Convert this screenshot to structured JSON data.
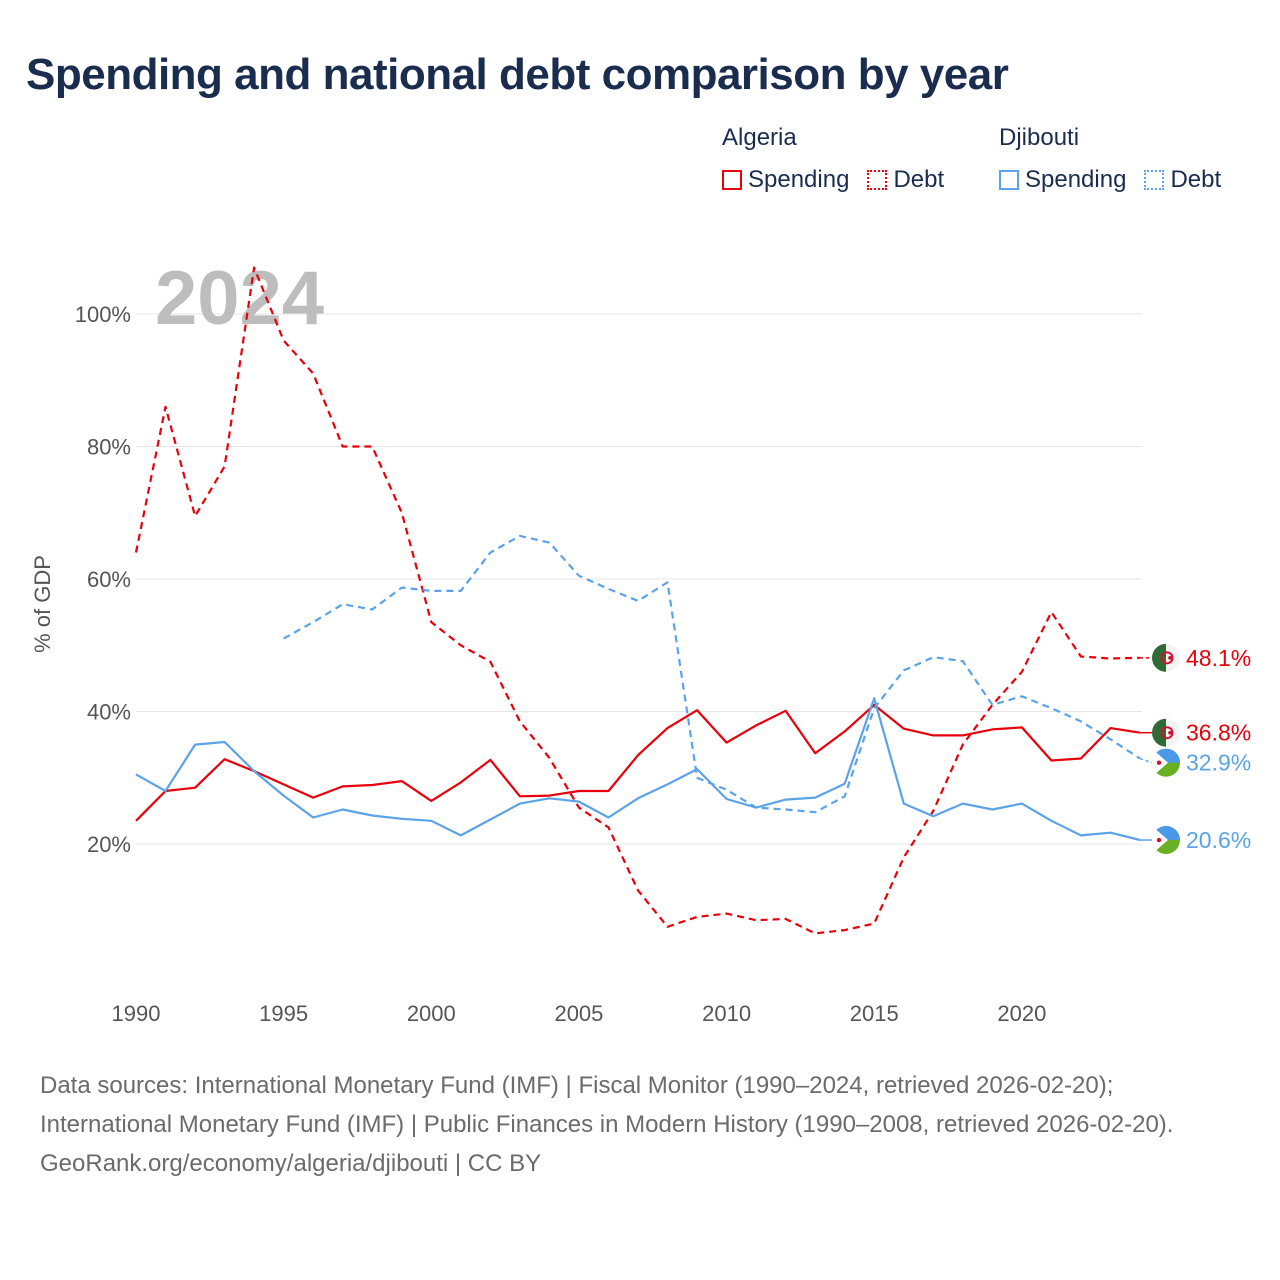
{
  "title": "Spending and national debt comparison by year",
  "legend": {
    "groups": [
      {
        "name": "Algeria",
        "color": "#e8000b",
        "items": [
          {
            "label": "Spending",
            "style": "solid"
          },
          {
            "label": "Debt",
            "style": "dotted"
          }
        ]
      },
      {
        "name": "Djibouti",
        "color": "#5ba3e6",
        "items": [
          {
            "label": "Spending",
            "style": "solid"
          },
          {
            "label": "Debt",
            "style": "dotted"
          }
        ]
      }
    ]
  },
  "footer": {
    "sources": "Data sources: International Monetary Fund (IMF) | Fiscal Monitor (1990–2024, retrieved 2026-02-20); International Monetary Fund (IMF) | Public Finances in Modern History (1990–2008, retrieved 2026-02-20).",
    "credit": "GeoRank.org/economy/algeria/djibouti | CC BY"
  },
  "chart_data": {
    "type": "line",
    "year_watermark": "2024",
    "ylabel": "% of GDP",
    "xlabel": "",
    "xlim": [
      1990,
      2024
    ],
    "ylim": [
      0,
      105
    ],
    "y_ticks": [
      20,
      40,
      60,
      80,
      100
    ],
    "y_tick_labels": [
      "20%",
      "40%",
      "60%",
      "80%",
      "100%"
    ],
    "x_ticks": [
      1990,
      1995,
      2000,
      2005,
      2010,
      2015,
      2020
    ],
    "x_tick_labels": [
      "1990",
      "1995",
      "2000",
      "2005",
      "2010",
      "2015",
      "2020"
    ],
    "grid": true,
    "series": [
      {
        "name": "Algeria Debt",
        "country": "Algeria",
        "metric": "Debt",
        "color": "#e8000b",
        "dash": "dashed",
        "x": [
          1990,
          1991,
          1992,
          1993,
          1994,
          1995,
          1996,
          1997,
          1998,
          1999,
          2000,
          2001,
          2002,
          2003,
          2004,
          2005,
          2006,
          2007,
          2008,
          2009,
          2010,
          2011,
          2012,
          2013,
          2014,
          2015,
          2016,
          2017,
          2018,
          2019,
          2020,
          2021,
          2022,
          2023,
          2024
        ],
        "values": [
          64,
          86,
          69.5,
          77,
          107,
          96,
          91,
          80,
          80,
          70,
          53.5,
          50,
          47.5,
          38.5,
          33,
          25.5,
          22.5,
          13,
          7.5,
          9,
          9.5,
          8.5,
          8.7,
          6.5,
          7,
          8,
          18,
          25,
          35,
          41,
          46,
          55,
          48.3,
          48,
          48.1
        ],
        "end_label": "48.1%"
      },
      {
        "name": "Algeria Spending",
        "country": "Algeria",
        "metric": "Spending",
        "color": "#e8000b",
        "dash": "solid",
        "x": [
          1990,
          1991,
          1992,
          1993,
          1994,
          1995,
          1996,
          1997,
          1998,
          1999,
          2000,
          2001,
          2002,
          2003,
          2004,
          2005,
          2006,
          2007,
          2008,
          2009,
          2010,
          2011,
          2012,
          2013,
          2014,
          2015,
          2016,
          2017,
          2018,
          2019,
          2020,
          2021,
          2022,
          2023,
          2024
        ],
        "values": [
          23.5,
          28,
          28.5,
          32.8,
          31,
          29,
          27,
          28.7,
          28.9,
          29.5,
          26.5,
          29.3,
          32.7,
          27.2,
          27.3,
          28,
          28,
          33.4,
          37.5,
          40.2,
          35.3,
          37.9,
          40.1,
          33.7,
          37,
          41,
          37.4,
          36.4,
          36.4,
          37.3,
          37.6,
          32.6,
          32.9,
          37.5,
          36.8
        ],
        "end_label": "36.8%"
      },
      {
        "name": "Djibouti Debt",
        "country": "Djibouti",
        "metric": "Debt",
        "color": "#5ba3e6",
        "dash": "dashed",
        "x": [
          1995,
          1996,
          1997,
          1998,
          1999,
          2000,
          2001,
          2002,
          2003,
          2004,
          2005,
          2006,
          2007,
          2008,
          2009,
          2010,
          2011,
          2012,
          2013,
          2014,
          2015,
          2016,
          2017,
          2018,
          2019,
          2020,
          2021,
          2022,
          2023,
          2024
        ],
        "values": [
          51,
          53.5,
          56.2,
          55.4,
          58.7,
          58.2,
          58.2,
          64,
          66.5,
          65.5,
          60.5,
          58.5,
          56.7,
          59.5,
          30,
          28.2,
          25.5,
          25.2,
          24.8,
          27.2,
          40.5,
          46.2,
          48.2,
          47.6,
          41,
          42.3,
          40.5,
          38.5,
          35.8,
          32.9
        ],
        "end_label": "32.9%"
      },
      {
        "name": "Djibouti Spending",
        "country": "Djibouti",
        "metric": "Spending",
        "color": "#5ba3e6",
        "dash": "solid",
        "x": [
          1990,
          1991,
          1992,
          1993,
          1994,
          1995,
          1996,
          1997,
          1998,
          1999,
          2000,
          2001,
          2002,
          2003,
          2004,
          2005,
          2006,
          2007,
          2008,
          2009,
          2010,
          2011,
          2012,
          2013,
          2014,
          2015,
          2016,
          2017,
          2018,
          2019,
          2020,
          2021,
          2022,
          2023,
          2024
        ],
        "values": [
          30.5,
          28,
          35,
          35.4,
          31,
          27.3,
          24,
          25.2,
          24.3,
          23.8,
          23.5,
          21.3,
          23.7,
          26.1,
          26.9,
          26.4,
          24,
          26.9,
          29,
          31.3,
          26.8,
          25.5,
          26.7,
          27,
          29.1,
          42,
          26.1,
          24.2,
          26.1,
          25.2,
          26.1,
          23.5,
          21.3,
          21.7,
          20.6
        ],
        "end_label": "20.6%"
      }
    ]
  }
}
